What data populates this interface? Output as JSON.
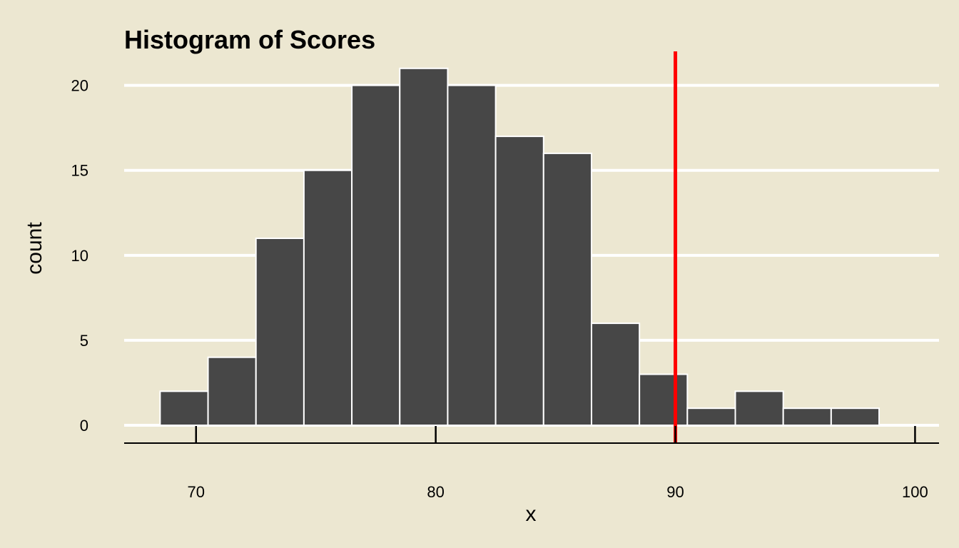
{
  "chart_data": {
    "type": "bar",
    "title": "Histogram of Scores",
    "xlabel": "x",
    "ylabel": "count",
    "xlim": [
      67,
      101
    ],
    "ylim": [
      -1.05,
      22
    ],
    "x_ticks": [
      70,
      80,
      90,
      100
    ],
    "y_ticks": [
      0,
      5,
      10,
      15,
      20
    ],
    "bins": [
      {
        "start": 68.5,
        "end": 70.5,
        "count": 2
      },
      {
        "start": 70.5,
        "end": 72.5,
        "count": 4
      },
      {
        "start": 72.5,
        "end": 74.5,
        "count": 11
      },
      {
        "start": 74.5,
        "end": 76.5,
        "count": 15
      },
      {
        "start": 76.5,
        "end": 78.5,
        "count": 20
      },
      {
        "start": 78.5,
        "end": 80.5,
        "count": 21
      },
      {
        "start": 80.5,
        "end": 82.5,
        "count": 20
      },
      {
        "start": 82.5,
        "end": 84.5,
        "count": 17
      },
      {
        "start": 84.5,
        "end": 86.5,
        "count": 16
      },
      {
        "start": 86.5,
        "end": 88.5,
        "count": 6
      },
      {
        "start": 88.5,
        "end": 90.5,
        "count": 3
      },
      {
        "start": 90.5,
        "end": 92.5,
        "count": 1
      },
      {
        "start": 92.5,
        "end": 94.5,
        "count": 2
      },
      {
        "start": 94.5,
        "end": 96.5,
        "count": 1
      },
      {
        "start": 96.5,
        "end": 98.5,
        "count": 1
      }
    ],
    "reference_line": {
      "x": 90,
      "color": "#FF0000"
    },
    "bar_fill": "#474747",
    "bar_stroke": "#FFFFFF",
    "background": "#ECE7D1",
    "grid": "horizontal",
    "grid_color": "#FFFFFF"
  }
}
